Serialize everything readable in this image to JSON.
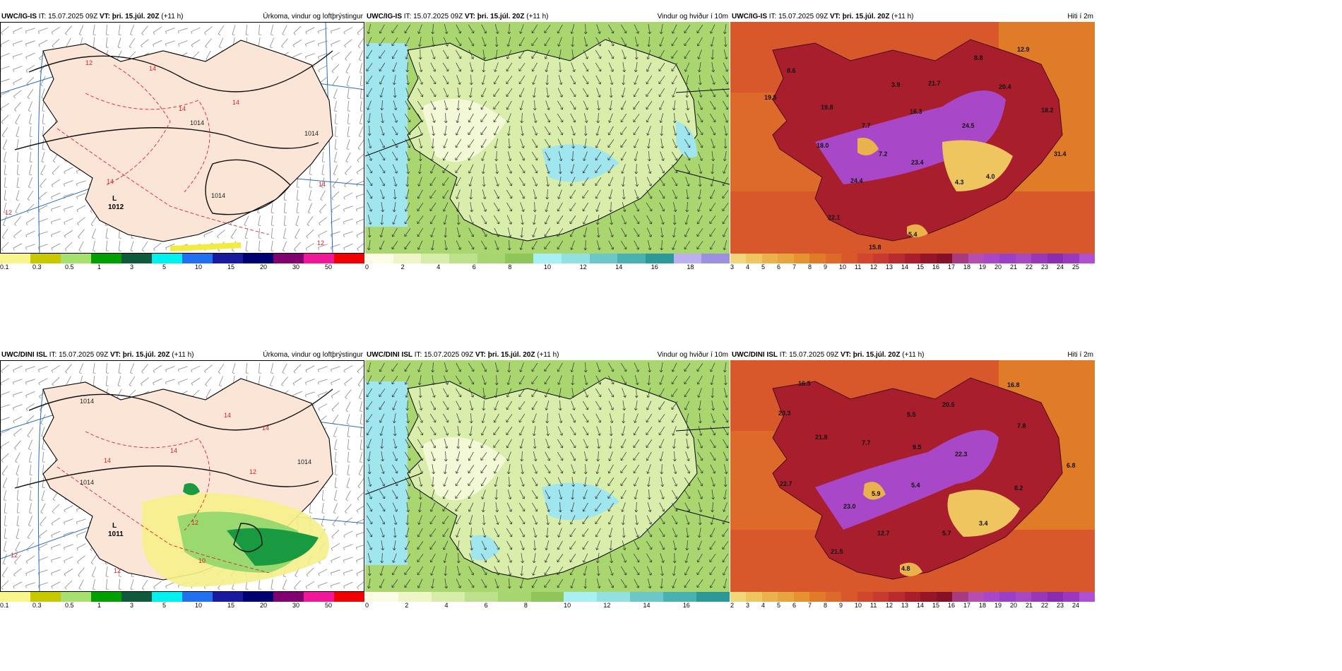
{
  "rows": [
    {
      "model": "UWC/IG-IS",
      "issue": "IT: 15.07.2025 09Z",
      "valid_label": "VT:",
      "valid": "þri. 15.júl. 20Z",
      "lead": "(+11 h)",
      "panels": [
        {
          "title": "Úrkoma, vindur og loftþrýstingur",
          "type": "precip",
          "low_label": "L",
          "low_value": "1012",
          "isobars": [
            "1014",
            "1014",
            "1014"
          ],
          "temps": [
            "14",
            "14",
            "14",
            "14",
            "14",
            "12",
            "12",
            "12"
          ]
        },
        {
          "title": "Vindur og hviður í 10m",
          "type": "wind"
        },
        {
          "title": "Hiti í 2m",
          "type": "temp",
          "values": [
            "12.9",
            "8.8",
            "8.6",
            "20.4",
            "18.2",
            "19.5",
            "3.9",
            "21.7",
            "16.3",
            "19.8",
            "7.7",
            "24.5",
            "18.0",
            "31.4",
            "7.2",
            "23.4",
            "4.3",
            "4.0",
            "24.4",
            "22.1",
            "5.4",
            "15.8"
          ]
        }
      ]
    },
    {
      "model": "UWC/DINI ISL",
      "issue": "IT: 15.07.2025 09Z",
      "valid_label": "VT:",
      "valid": "þri. 15.júl. 20Z",
      "lead": "(+11 h)",
      "panels": [
        {
          "title": "Úrkoma, vindur og loftþrýstingur",
          "type": "precip",
          "low_label": "L",
          "low_value": "1011",
          "isobars": [
            "1014",
            "1014",
            "1014"
          ],
          "temps": [
            "14",
            "14",
            "14",
            "12",
            "14",
            "12",
            "12",
            "10",
            "12"
          ]
        },
        {
          "title": "Vindur og hviður í 10m",
          "type": "wind"
        },
        {
          "title": "Hiti í 2m",
          "type": "temp",
          "values": [
            "16.5",
            "16.8",
            "23.3",
            "5.5",
            "20.5",
            "7.8",
            "21.8",
            "7.7",
            "9.5",
            "22.3",
            "6.8",
            "22.7",
            "5.9",
            "5.4",
            "8.2",
            "23.0",
            "12.7",
            "5.7",
            "3.4",
            "21.5",
            "4.8"
          ]
        }
      ]
    }
  ],
  "legends": {
    "precip": {
      "colors": [
        "#f8f58c",
        "#c8c800",
        "#a8e070",
        "#00a000",
        "#0f5a3c",
        "#00f0f0",
        "#2070f0",
        "#1a1aa0",
        "#000070",
        "#800070",
        "#f01898",
        "#f00000"
      ],
      "ticks": [
        "0.1",
        "0.3",
        "0.5",
        "1",
        "3",
        "5",
        "10",
        "15",
        "20",
        "30",
        "50"
      ]
    },
    "wind": {
      "colors": [
        "#fbfbe6",
        "#eef6c8",
        "#d6edaa",
        "#bde08c",
        "#a7d572",
        "#8fc55a",
        "#a8f0f4",
        "#92e0e0",
        "#6cc8c8",
        "#49b2b0",
        "#2c9898",
        "#bcb0f0",
        "#9c90e0"
      ],
      "ticks_top": [
        "0",
        "2",
        "4",
        "6",
        "8",
        "10",
        "12",
        "14",
        "16",
        "18"
      ],
      "ticks_bottom": [
        "0",
        "2",
        "4",
        "6",
        "8",
        "10",
        "12",
        "14",
        "16"
      ]
    },
    "temp": {
      "colors": [
        "#f2d67a",
        "#eec55e",
        "#e9b24c",
        "#e8a43e",
        "#e59230",
        "#e07c28",
        "#dd6a2a",
        "#d8582c",
        "#d1472e",
        "#c63a30",
        "#b82b2e",
        "#a81e2c",
        "#961628",
        "#86102a",
        "#a83a80",
        "#b44eb0",
        "#a848c8",
        "#9a40c8",
        "#a848c0",
        "#9838b8",
        "#8a2cb0",
        "#9a38c0",
        "#ae50d0"
      ],
      "ticks_top": [
        "3",
        "4",
        "5",
        "6",
        "7",
        "8",
        "9",
        "10",
        "11",
        "12",
        "13",
        "14",
        "15",
        "16",
        "17",
        "18",
        "19",
        "20",
        "21",
        "22",
        "23",
        "24",
        "25"
      ],
      "ticks_bottom": [
        "2",
        "3",
        "4",
        "5",
        "6",
        "7",
        "8",
        "9",
        "10",
        "11",
        "12",
        "13",
        "14",
        "15",
        "16",
        "17",
        "18",
        "19",
        "20",
        "21",
        "22",
        "23",
        "24"
      ]
    }
  }
}
